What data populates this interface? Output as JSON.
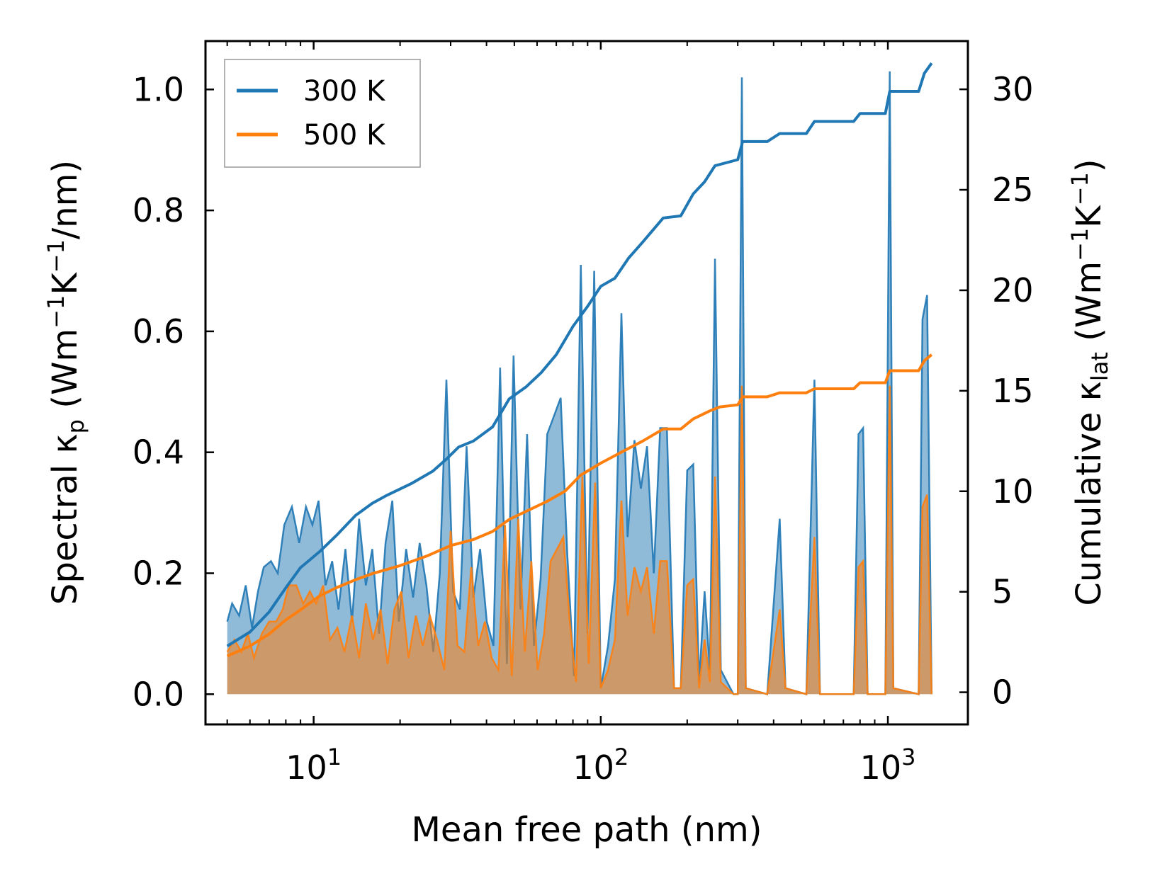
{
  "chart_data": {
    "type": "line",
    "xscale": "log",
    "xlabel": "Mean free path (nm)",
    "ylabel_left": "Spectral κp (Wm−1K−1/nm)",
    "ylabel_left_parts": {
      "prefix": "Spectral κ",
      "sub": "p",
      "open": " (Wm",
      "sup1": "−1",
      "mid": "K",
      "sup2": "−1",
      "close": "/nm)"
    },
    "ylabel_right": "Cumulative κlat (Wm−1K−1)",
    "ylabel_right_parts": {
      "prefix": "Cumulative κ",
      "sub": "lat",
      "open": " (Wm",
      "sup1": "−1",
      "mid": "K",
      "sup2": "−1",
      "close": ")"
    },
    "xlim": [
      4.2,
      1900
    ],
    "ylim_left": [
      -0.05,
      1.08
    ],
    "ylim_right": [
      -1.6,
      32.4
    ],
    "x_ticks": [
      {
        "value": 10,
        "base": "10",
        "exp": "1"
      },
      {
        "value": 100,
        "base": "10",
        "exp": "2"
      },
      {
        "value": 1000,
        "base": "10",
        "exp": "3"
      }
    ],
    "y_left_ticks": [
      "0.0",
      "0.2",
      "0.4",
      "0.6",
      "0.8",
      "1.0"
    ],
    "y_left_tick_values": [
      0,
      0.2,
      0.4,
      0.6,
      0.8,
      1.0
    ],
    "y_right_ticks": [
      "0",
      "5",
      "10",
      "15",
      "20",
      "25",
      "30"
    ],
    "y_right_tick_values": [
      0,
      5,
      10,
      15,
      20,
      25,
      30
    ],
    "legend": {
      "position": "top-left",
      "entries": [
        {
          "label": "300 K",
          "color": "#1f77b4"
        },
        {
          "label": "500 K",
          "color": "#ff7f0e"
        }
      ]
    },
    "series": [
      {
        "name": "300 K spectral",
        "axis": "left",
        "kind": "area",
        "color": "#1f77b4",
        "points": [
          [
            5.0,
            0.12
          ],
          [
            5.2,
            0.15
          ],
          [
            5.5,
            0.13
          ],
          [
            5.8,
            0.18
          ],
          [
            6.1,
            0.11
          ],
          [
            6.4,
            0.17
          ],
          [
            6.7,
            0.21
          ],
          [
            7.1,
            0.22
          ],
          [
            7.5,
            0.2
          ],
          [
            7.9,
            0.28
          ],
          [
            8.4,
            0.31
          ],
          [
            8.9,
            0.25
          ],
          [
            9.4,
            0.31
          ],
          [
            9.9,
            0.28
          ],
          [
            10.4,
            0.32
          ],
          [
            11.0,
            0.18
          ],
          [
            11.6,
            0.22
          ],
          [
            12.2,
            0.14
          ],
          [
            12.9,
            0.24
          ],
          [
            13.6,
            0.12
          ],
          [
            14.4,
            0.29
          ],
          [
            15.2,
            0.18
          ],
          [
            16.0,
            0.24
          ],
          [
            16.9,
            0.1
          ],
          [
            17.8,
            0.25
          ],
          [
            18.8,
            0.32
          ],
          [
            19.8,
            0.12
          ],
          [
            21.0,
            0.24
          ],
          [
            22.2,
            0.16
          ],
          [
            23.4,
            0.25
          ],
          [
            24.7,
            0.18
          ],
          [
            26.1,
            0.07
          ],
          [
            27.5,
            0.2
          ],
          [
            29.0,
            0.52
          ],
          [
            30.6,
            0.17
          ],
          [
            32.3,
            0.14
          ],
          [
            34.1,
            0.41
          ],
          [
            36.0,
            0.16
          ],
          [
            38.0,
            0.24
          ],
          [
            40.1,
            0.12
          ],
          [
            42.3,
            0.08
          ],
          [
            44.6,
            0.54
          ],
          [
            47.1,
            0.05
          ],
          [
            49.7,
            0.56
          ],
          [
            52.5,
            0.14
          ],
          [
            55.4,
            0.43
          ],
          [
            58.5,
            0.08
          ],
          [
            61.7,
            0.19
          ],
          [
            65.1,
            0.43
          ],
          [
            68.7,
            0.46
          ],
          [
            72.5,
            0.49
          ],
          [
            76.5,
            0.23
          ],
          [
            80.7,
            0.03
          ],
          [
            85.2,
            0.71
          ],
          [
            89.9,
            0.1
          ],
          [
            94.9,
            0.7
          ],
          [
            100.0,
            0.01
          ],
          [
            106.0,
            0.08
          ],
          [
            112.0,
            0.19
          ],
          [
            118.0,
            0.63
          ],
          [
            124.0,
            0.26
          ],
          [
            131.0,
            0.42
          ],
          [
            138.0,
            0.34
          ],
          [
            145.0,
            0.41
          ],
          [
            153.0,
            0.2
          ],
          [
            161.0,
            0.44
          ],
          [
            170.0,
            0.44
          ],
          [
            180.0,
            0.01
          ],
          [
            190.0,
            0.01
          ],
          [
            200.0,
            0.37
          ],
          [
            210.0,
            0.38
          ],
          [
            220.0,
            0.02
          ],
          [
            230.0,
            0.17
          ],
          [
            240.0,
            0.04
          ],
          [
            250.0,
            0.72
          ],
          [
            262.0,
            0.04
          ],
          [
            290.0,
            0.0
          ],
          [
            300.0,
            0.0
          ],
          [
            310.0,
            1.02
          ],
          [
            320.0,
            0.01
          ],
          [
            380.0,
            0.0
          ],
          [
            420.0,
            0.29
          ],
          [
            440.0,
            0.01
          ],
          [
            520.0,
            0.0
          ],
          [
            555.0,
            0.52
          ],
          [
            580.0,
            0.0
          ],
          [
            760.0,
            0.0
          ],
          [
            790.0,
            0.43
          ],
          [
            820.0,
            0.44
          ],
          [
            850.0,
            0.0
          ],
          [
            980.0,
            0.0
          ],
          [
            1015.0,
            1.03
          ],
          [
            1045.0,
            0.01
          ],
          [
            1280.0,
            0.0
          ],
          [
            1320.0,
            0.62
          ],
          [
            1370.0,
            0.66
          ],
          [
            1420.0,
            0.0
          ]
        ]
      },
      {
        "name": "500 K spectral",
        "axis": "left",
        "kind": "area",
        "color": "#ff7f0e",
        "points": [
          [
            5.0,
            0.07
          ],
          [
            5.3,
            0.09
          ],
          [
            5.6,
            0.07
          ],
          [
            5.9,
            0.1
          ],
          [
            6.2,
            0.06
          ],
          [
            6.6,
            0.1
          ],
          [
            7.0,
            0.12
          ],
          [
            7.4,
            0.12
          ],
          [
            7.8,
            0.14
          ],
          [
            8.2,
            0.18
          ],
          [
            8.7,
            0.18
          ],
          [
            9.2,
            0.15
          ],
          [
            9.7,
            0.17
          ],
          [
            10.2,
            0.15
          ],
          [
            10.8,
            0.18
          ],
          [
            11.4,
            0.09
          ],
          [
            12.1,
            0.11
          ],
          [
            12.8,
            0.07
          ],
          [
            13.6,
            0.13
          ],
          [
            14.4,
            0.06
          ],
          [
            15.2,
            0.15
          ],
          [
            16.1,
            0.09
          ],
          [
            17.1,
            0.14
          ],
          [
            18.1,
            0.05
          ],
          [
            19.1,
            0.14
          ],
          [
            20.2,
            0.17
          ],
          [
            21.4,
            0.06
          ],
          [
            22.7,
            0.13
          ],
          [
            24.0,
            0.08
          ],
          [
            25.4,
            0.13
          ],
          [
            26.9,
            0.09
          ],
          [
            28.5,
            0.04
          ],
          [
            30.0,
            0.27
          ],
          [
            31.7,
            0.08
          ],
          [
            33.5,
            0.07
          ],
          [
            35.4,
            0.21
          ],
          [
            37.4,
            0.08
          ],
          [
            39.5,
            0.12
          ],
          [
            41.7,
            0.06
          ],
          [
            44.0,
            0.04
          ],
          [
            46.4,
            0.28
          ],
          [
            49.0,
            0.03
          ],
          [
            51.6,
            0.29
          ],
          [
            54.4,
            0.07
          ],
          [
            57.3,
            0.22
          ],
          [
            60.3,
            0.04
          ],
          [
            63.5,
            0.1
          ],
          [
            66.9,
            0.22
          ],
          [
            70.4,
            0.24
          ],
          [
            74.1,
            0.26
          ],
          [
            78.0,
            0.12
          ],
          [
            82.0,
            0.02
          ],
          [
            86.3,
            0.36
          ],
          [
            90.8,
            0.05
          ],
          [
            95.6,
            0.35
          ],
          [
            100.0,
            0.01
          ],
          [
            106.0,
            0.04
          ],
          [
            112.0,
            0.09
          ],
          [
            118.0,
            0.32
          ],
          [
            124.0,
            0.13
          ],
          [
            131.0,
            0.21
          ],
          [
            138.0,
            0.17
          ],
          [
            145.0,
            0.21
          ],
          [
            153.0,
            0.1
          ],
          [
            161.0,
            0.22
          ],
          [
            170.0,
            0.22
          ],
          [
            180.0,
            0.01
          ],
          [
            190.0,
            0.01
          ],
          [
            200.0,
            0.18
          ],
          [
            210.0,
            0.19
          ],
          [
            220.0,
            0.01
          ],
          [
            230.0,
            0.09
          ],
          [
            240.0,
            0.02
          ],
          [
            250.0,
            0.36
          ],
          [
            262.0,
            0.02
          ],
          [
            290.0,
            0.0
          ],
          [
            300.0,
            0.0
          ],
          [
            310.0,
            0.51
          ],
          [
            320.0,
            0.01
          ],
          [
            380.0,
            0.0
          ],
          [
            420.0,
            0.14
          ],
          [
            440.0,
            0.01
          ],
          [
            520.0,
            0.0
          ],
          [
            555.0,
            0.26
          ],
          [
            580.0,
            0.0
          ],
          [
            760.0,
            0.0
          ],
          [
            790.0,
            0.21
          ],
          [
            820.0,
            0.22
          ],
          [
            850.0,
            0.0
          ],
          [
            980.0,
            0.0
          ],
          [
            1015.0,
            0.51
          ],
          [
            1045.0,
            0.01
          ],
          [
            1280.0,
            0.0
          ],
          [
            1320.0,
            0.31
          ],
          [
            1370.0,
            0.33
          ],
          [
            1420.0,
            0.0
          ]
        ]
      },
      {
        "name": "300 K cumulative",
        "axis": "right",
        "kind": "line",
        "color": "#1f77b4",
        "points": [
          [
            5.0,
            2.3
          ],
          [
            6.0,
            3.0
          ],
          [
            7.0,
            4.0
          ],
          [
            8.0,
            5.2
          ],
          [
            9.0,
            6.2
          ],
          [
            10.5,
            7.0
          ],
          [
            12.0,
            7.8
          ],
          [
            14.0,
            8.8
          ],
          [
            16.0,
            9.4
          ],
          [
            18.0,
            9.8
          ],
          [
            22.0,
            10.4
          ],
          [
            26.0,
            11.0
          ],
          [
            29.0,
            11.6
          ],
          [
            32.0,
            12.2
          ],
          [
            36.0,
            12.5
          ],
          [
            42.0,
            13.2
          ],
          [
            48.0,
            14.6
          ],
          [
            55.0,
            15.2
          ],
          [
            62.0,
            15.9
          ],
          [
            70.0,
            16.8
          ],
          [
            80.0,
            18.2
          ],
          [
            90.0,
            19.2
          ],
          [
            100.0,
            20.2
          ],
          [
            112.0,
            20.6
          ],
          [
            125.0,
            21.6
          ],
          [
            140.0,
            22.4
          ],
          [
            165.0,
            23.6
          ],
          [
            190.0,
            23.7
          ],
          [
            210.0,
            24.8
          ],
          [
            230.0,
            25.4
          ],
          [
            250.0,
            26.2
          ],
          [
            300.0,
            26.5
          ],
          [
            312.0,
            27.4
          ],
          [
            380.0,
            27.4
          ],
          [
            420.0,
            27.8
          ],
          [
            520.0,
            27.8
          ],
          [
            555.0,
            28.4
          ],
          [
            760.0,
            28.4
          ],
          [
            800.0,
            28.8
          ],
          [
            980.0,
            28.8
          ],
          [
            1015.0,
            29.9
          ],
          [
            1280.0,
            29.9
          ],
          [
            1340.0,
            30.8
          ],
          [
            1420.0,
            31.3
          ]
        ]
      },
      {
        "name": "500 K cumulative",
        "axis": "right",
        "kind": "line",
        "color": "#ff7f0e",
        "points": [
          [
            5.0,
            1.8
          ],
          [
            6.0,
            2.3
          ],
          [
            7.0,
            2.9
          ],
          [
            8.0,
            3.6
          ],
          [
            9.0,
            4.1
          ],
          [
            10.5,
            4.8
          ],
          [
            12.0,
            5.2
          ],
          [
            14.0,
            5.6
          ],
          [
            16.0,
            5.9
          ],
          [
            20.0,
            6.3
          ],
          [
            25.0,
            6.8
          ],
          [
            30.0,
            7.3
          ],
          [
            36.0,
            7.6
          ],
          [
            42.0,
            8.0
          ],
          [
            48.0,
            8.6
          ],
          [
            55.0,
            9.0
          ],
          [
            65.0,
            9.5
          ],
          [
            75.0,
            10.0
          ],
          [
            85.0,
            10.8
          ],
          [
            100.0,
            11.4
          ],
          [
            120.0,
            12.0
          ],
          [
            140.0,
            12.5
          ],
          [
            165.0,
            13.1
          ],
          [
            190.0,
            13.1
          ],
          [
            210.0,
            13.6
          ],
          [
            240.0,
            14.0
          ],
          [
            260.0,
            14.2
          ],
          [
            300.0,
            14.3
          ],
          [
            312.0,
            14.7
          ],
          [
            380.0,
            14.7
          ],
          [
            420.0,
            14.9
          ],
          [
            520.0,
            14.9
          ],
          [
            555.0,
            15.1
          ],
          [
            760.0,
            15.1
          ],
          [
            800.0,
            15.4
          ],
          [
            980.0,
            15.4
          ],
          [
            1015.0,
            16.0
          ],
          [
            1280.0,
            16.0
          ],
          [
            1340.0,
            16.5
          ],
          [
            1420.0,
            16.8
          ]
        ]
      }
    ]
  }
}
